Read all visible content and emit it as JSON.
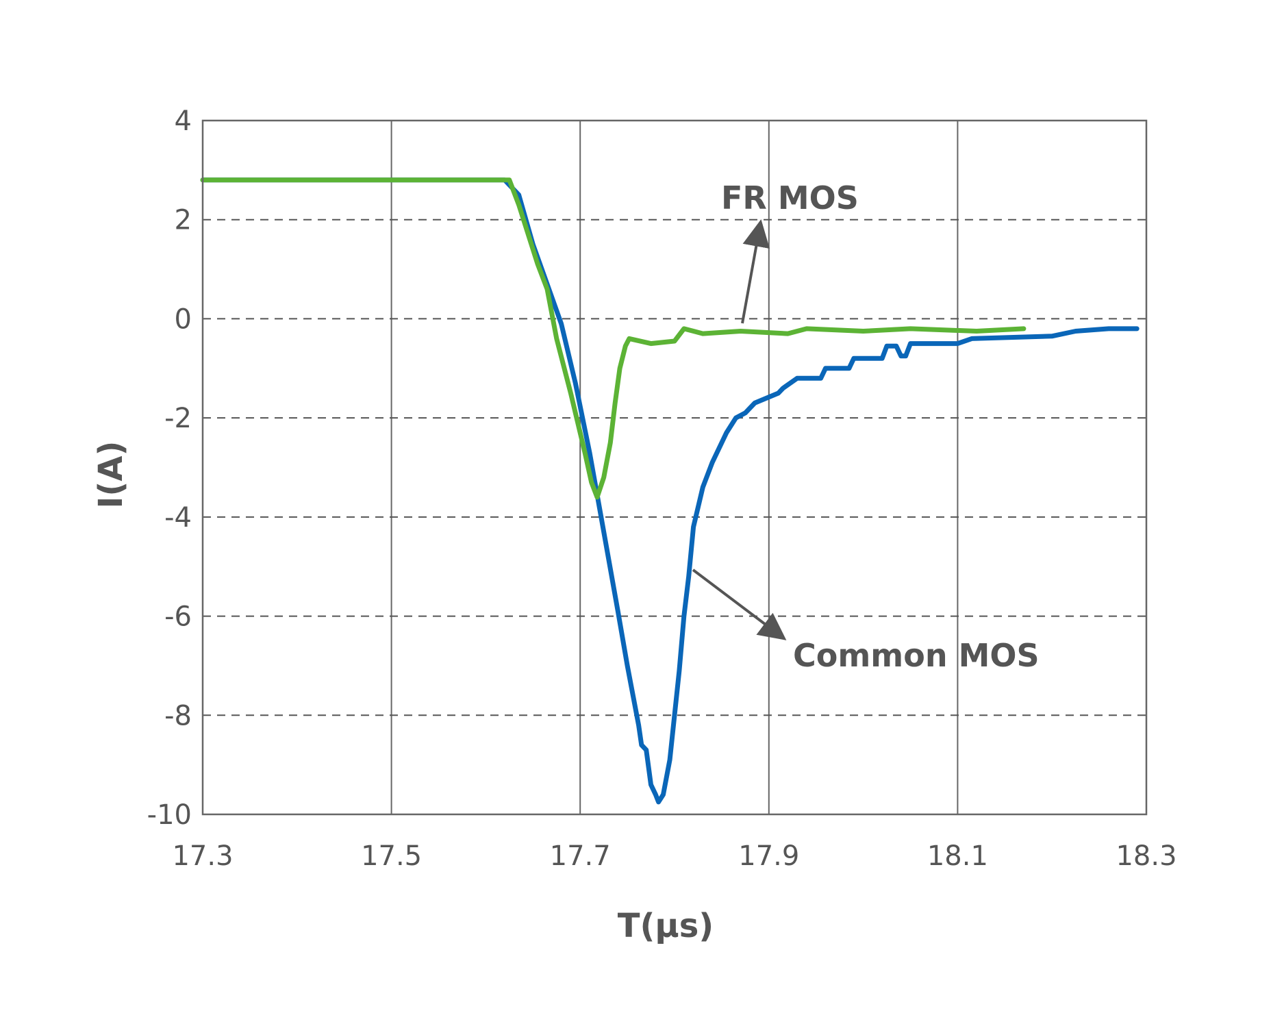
{
  "chart_data": {
    "type": "line",
    "title": "",
    "xlabel": "T(μs)",
    "ylabel": "I(A)",
    "xlim": [
      17.3,
      18.3
    ],
    "ylim": [
      -10,
      4
    ],
    "x_ticks": [
      "17.3",
      "17.5",
      "17.7",
      "17.9",
      "18.1",
      "18.3"
    ],
    "y_ticks": [
      "4",
      "2",
      "0",
      "-2",
      "-4",
      "-6",
      "-8",
      "-10"
    ],
    "grid": {
      "vertical": "solid",
      "horizontal": "dashed"
    },
    "legend": "none",
    "series": [
      {
        "name": "Common MOS",
        "color": "#0a66b8",
        "points": [
          [
            17.3,
            2.8
          ],
          [
            17.62,
            2.8
          ],
          [
            17.635,
            2.5
          ],
          [
            17.65,
            1.5
          ],
          [
            17.665,
            0.7
          ],
          [
            17.68,
            -0.1
          ],
          [
            17.695,
            -1.3
          ],
          [
            17.71,
            -2.7
          ],
          [
            17.725,
            -4.3
          ],
          [
            17.74,
            -5.9
          ],
          [
            17.75,
            -7.0
          ],
          [
            17.762,
            -8.2
          ],
          [
            17.765,
            -8.6
          ],
          [
            17.77,
            -8.7
          ],
          [
            17.775,
            -9.4
          ],
          [
            17.78,
            -9.6
          ],
          [
            17.783,
            -9.75
          ],
          [
            17.788,
            -9.6
          ],
          [
            17.795,
            -8.9
          ],
          [
            17.8,
            -8.0
          ],
          [
            17.805,
            -7.1
          ],
          [
            17.81,
            -6.0
          ],
          [
            17.815,
            -5.2
          ],
          [
            17.82,
            -4.2
          ],
          [
            17.83,
            -3.4
          ],
          [
            17.84,
            -2.9
          ],
          [
            17.855,
            -2.3
          ],
          [
            17.865,
            -2.0
          ],
          [
            17.875,
            -1.9
          ],
          [
            17.885,
            -1.7
          ],
          [
            17.91,
            -1.5
          ],
          [
            17.915,
            -1.4
          ],
          [
            17.93,
            -1.2
          ],
          [
            17.955,
            -1.2
          ],
          [
            17.96,
            -1.0
          ],
          [
            17.985,
            -1.0
          ],
          [
            17.99,
            -0.8
          ],
          [
            18.02,
            -0.8
          ],
          [
            18.025,
            -0.55
          ],
          [
            18.035,
            -0.55
          ],
          [
            18.04,
            -0.75
          ],
          [
            18.045,
            -0.75
          ],
          [
            18.05,
            -0.5
          ],
          [
            18.1,
            -0.5
          ],
          [
            18.115,
            -0.4
          ],
          [
            18.2,
            -0.35
          ],
          [
            18.225,
            -0.25
          ],
          [
            18.26,
            -0.2
          ],
          [
            18.29,
            -0.2
          ]
        ]
      },
      {
        "name": "FR MOS",
        "color": "#5cb335",
        "points": [
          [
            17.3,
            2.8
          ],
          [
            17.625,
            2.8
          ],
          [
            17.635,
            2.3
          ],
          [
            17.645,
            1.7
          ],
          [
            17.655,
            1.1
          ],
          [
            17.665,
            0.6
          ],
          [
            17.675,
            -0.4
          ],
          [
            17.69,
            -1.5
          ],
          [
            17.705,
            -2.7
          ],
          [
            17.712,
            -3.3
          ],
          [
            17.718,
            -3.6
          ],
          [
            17.725,
            -3.2
          ],
          [
            17.732,
            -2.5
          ],
          [
            17.737,
            -1.7
          ],
          [
            17.742,
            -1.0
          ],
          [
            17.748,
            -0.55
          ],
          [
            17.752,
            -0.4
          ],
          [
            17.775,
            -0.5
          ],
          [
            17.8,
            -0.45
          ],
          [
            17.81,
            -0.2
          ],
          [
            17.83,
            -0.3
          ],
          [
            17.87,
            -0.25
          ],
          [
            17.92,
            -0.3
          ],
          [
            17.94,
            -0.2
          ],
          [
            18.0,
            -0.25
          ],
          [
            18.05,
            -0.2
          ],
          [
            18.12,
            -0.25
          ],
          [
            18.17,
            -0.2
          ]
        ]
      }
    ],
    "annotations": [
      {
        "text": "FR MOS",
        "points_to": "FR MOS"
      },
      {
        "text": "Common MOS",
        "points_to": "Common MOS"
      }
    ]
  }
}
